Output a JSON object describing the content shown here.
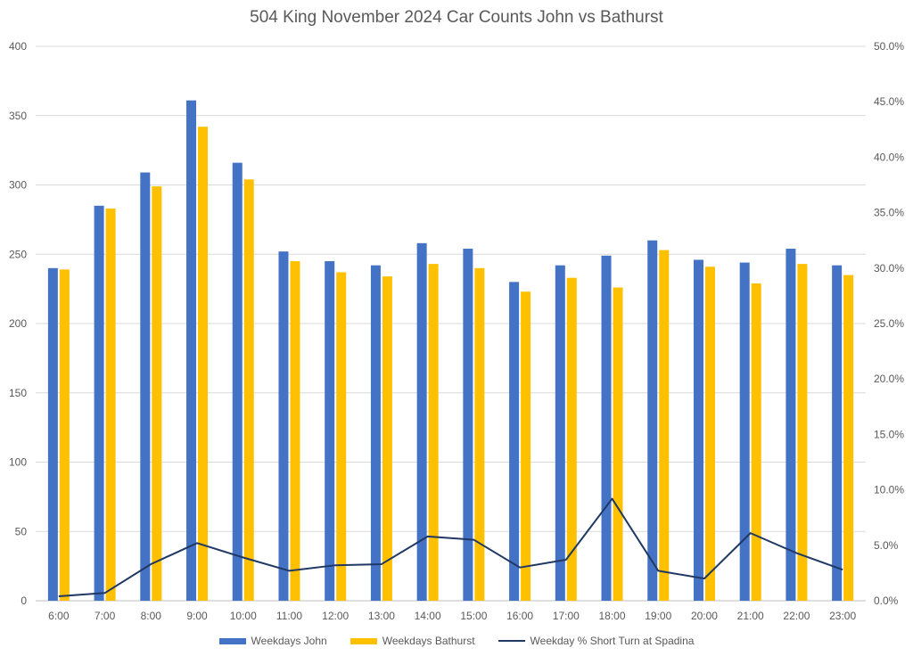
{
  "chart_data": {
    "type": "bar",
    "title": "504 King November 2024 Car Counts John vs Bathurst",
    "categories": [
      "6:00",
      "7:00",
      "8:00",
      "9:00",
      "10:00",
      "11:00",
      "12:00",
      "13:00",
      "14:00",
      "15:00",
      "16:00",
      "17:00",
      "18:00",
      "19:00",
      "20:00",
      "21:00",
      "22:00",
      "23:00"
    ],
    "series": [
      {
        "name": "Weekdays John",
        "type": "bar",
        "axis": "left",
        "color": "#4472C4",
        "values": [
          240,
          285,
          309,
          361,
          316,
          252,
          245,
          242,
          258,
          254,
          230,
          242,
          249,
          260,
          246,
          244,
          254,
          242
        ]
      },
      {
        "name": "Weekdays Bathurst",
        "type": "bar",
        "axis": "left",
        "color": "#FFC000",
        "values": [
          239,
          283,
          299,
          342,
          304,
          245,
          237,
          234,
          243,
          240,
          223,
          233,
          226,
          253,
          241,
          229,
          243,
          235
        ]
      },
      {
        "name": "Weekday % Short Turn at Spadina",
        "type": "line",
        "axis": "right",
        "color": "#203864",
        "values": [
          0.4,
          0.7,
          3.3,
          5.2,
          3.9,
          2.7,
          3.2,
          3.3,
          5.8,
          5.5,
          3.0,
          3.7,
          9.2,
          2.7,
          2.0,
          6.1,
          4.3,
          2.8
        ]
      }
    ],
    "y_left": {
      "min": 0,
      "max": 400,
      "ticks": [
        0,
        50,
        100,
        150,
        200,
        250,
        300,
        350,
        400
      ]
    },
    "y_right": {
      "min": 0,
      "max": 50,
      "ticks": [
        "0.0%",
        "5.0%",
        "10.0%",
        "15.0%",
        "20.0%",
        "25.0%",
        "30.0%",
        "35.0%",
        "40.0%",
        "45.0%",
        "50.0%"
      ]
    },
    "grid": true,
    "legend_position": "bottom"
  }
}
